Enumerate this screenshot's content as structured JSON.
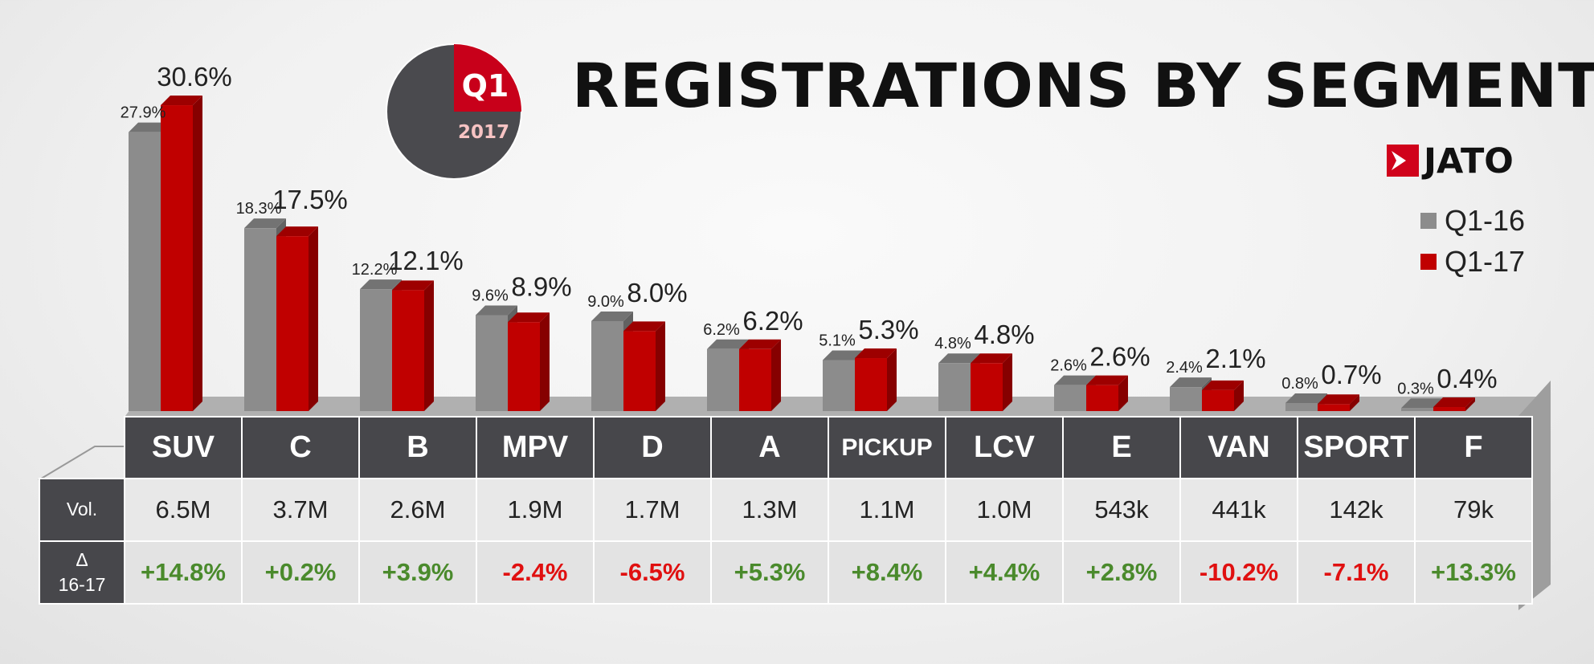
{
  "title": "REGISTRATIONS BY SEGMENTS",
  "badge": {
    "quarter": "Q1",
    "year": "2017"
  },
  "logo": {
    "text": "JATO"
  },
  "legend": [
    {
      "label": "Q1-16",
      "color": "#8c8c8c"
    },
    {
      "label": "Q1-17",
      "color": "#c00000"
    }
  ],
  "colors": {
    "q116": "#8c8c8c",
    "q117": "#c00000",
    "positive": "#4a8a2c",
    "negative": "#e01010"
  },
  "table": {
    "vol_label": "Vol.",
    "delta_label": "Δ",
    "delta_sublabel": "16-17",
    "columns": [
      {
        "segment": "SUV",
        "vol": "6.5M",
        "delta": "+14.8%",
        "sign": "positive"
      },
      {
        "segment": "C",
        "vol": "3.7M",
        "delta": "+0.2%",
        "sign": "positive"
      },
      {
        "segment": "B",
        "vol": "2.6M",
        "delta": "+3.9%",
        "sign": "positive"
      },
      {
        "segment": "MPV",
        "vol": "1.9M",
        "delta": "-2.4%",
        "sign": "negative"
      },
      {
        "segment": "D",
        "vol": "1.7M",
        "delta": "-6.5%",
        "sign": "negative"
      },
      {
        "segment": "A",
        "vol": "1.3M",
        "delta": "+5.3%",
        "sign": "positive"
      },
      {
        "segment": "PICKUP",
        "vol": "1.1M",
        "delta": "+8.4%",
        "sign": "positive"
      },
      {
        "segment": "LCV",
        "vol": "1.0M",
        "delta": "+4.4%",
        "sign": "positive"
      },
      {
        "segment": "E",
        "vol": "543k",
        "delta": "+2.8%",
        "sign": "positive"
      },
      {
        "segment": "VAN",
        "vol": "441k",
        "delta": "-10.2%",
        "sign": "negative"
      },
      {
        "segment": "SPORT",
        "vol": "142k",
        "delta": "-7.1%",
        "sign": "negative"
      },
      {
        "segment": "F",
        "vol": "79k",
        "delta": "+13.3%",
        "sign": "positive"
      }
    ]
  },
  "chart_data": {
    "type": "bar",
    "title": "REGISTRATIONS BY SEGMENTS",
    "categories": [
      "SUV",
      "C",
      "B",
      "MPV",
      "D",
      "A",
      "PICKUP",
      "LCV",
      "E",
      "VAN",
      "SPORT",
      "F"
    ],
    "series": [
      {
        "name": "Q1-16",
        "values": [
          27.9,
          18.3,
          12.2,
          9.6,
          9.0,
          6.2,
          5.1,
          4.8,
          2.6,
          2.4,
          0.8,
          0.3
        ],
        "labels": [
          "27.9%",
          "18.3%",
          "12.2%",
          "9.6%",
          "9.0%",
          "6.2%",
          "5.1%",
          "4.8%",
          "2.6%",
          "2.4%",
          "0.8%",
          "0.3%"
        ]
      },
      {
        "name": "Q1-17",
        "values": [
          30.6,
          17.5,
          12.1,
          8.9,
          8.0,
          6.2,
          5.3,
          4.8,
          2.6,
          2.1,
          0.7,
          0.4
        ],
        "labels": [
          "30.6%",
          "17.5%",
          "12.1%",
          "8.9%",
          "8.0%",
          "6.2%",
          "5.3%",
          "4.8%",
          "2.6%",
          "2.1%",
          "0.7%",
          "0.4%"
        ]
      }
    ],
    "xlabel": "",
    "ylabel": "",
    "grid": false,
    "legend": "right"
  }
}
